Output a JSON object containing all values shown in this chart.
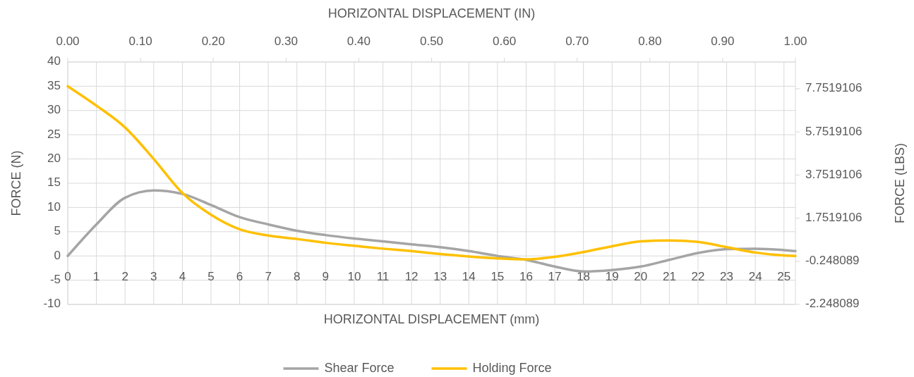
{
  "chart_data": {
    "type": "line",
    "xlabel": "HORIZONTAL DISPLACEMENT (mm)",
    "x2label": "HORIZONTAL DISPLACEMENT (IN)",
    "ylabel": "FORCE (N)",
    "y2label": "FORCE (LBS)",
    "x": [
      0,
      1,
      2,
      3,
      4,
      5,
      6,
      7,
      8,
      9,
      10,
      11,
      12,
      13,
      14,
      15,
      16,
      17,
      18,
      19,
      20,
      21,
      22,
      23,
      24,
      25,
      25.4
    ],
    "series": [
      {
        "name": "Shear Force",
        "color": "#a5a5a5",
        "values": [
          0,
          6.5,
          12,
          13.5,
          12.8,
          10.5,
          8,
          6.5,
          5.2,
          4.3,
          3.6,
          3,
          2.4,
          1.8,
          1,
          0,
          -0.8,
          -2.2,
          -3.2,
          -2.9,
          -2.2,
          -0.8,
          0.6,
          1.4,
          1.5,
          1.2,
          1
        ]
      },
      {
        "name": "Holding Force",
        "color": "#ffc000",
        "values": [
          35,
          31,
          26.5,
          20,
          13,
          8.5,
          5.5,
          4.2,
          3.5,
          2.7,
          2.1,
          1.5,
          1,
          0.4,
          -0.1,
          -0.5,
          -0.7,
          -0.2,
          0.8,
          2,
          3,
          3.2,
          2.9,
          1.8,
          0.7,
          0.1,
          0
        ]
      }
    ],
    "xlim": [
      0,
      25.4
    ],
    "xticks": [
      0,
      1,
      2,
      3,
      4,
      5,
      6,
      7,
      8,
      9,
      10,
      11,
      12,
      13,
      14,
      15,
      16,
      17,
      18,
      19,
      20,
      21,
      22,
      23,
      24,
      25
    ],
    "x2lim": [
      0,
      1
    ],
    "x2ticks": [
      {
        "value": 0,
        "label": "0.00"
      },
      {
        "value": 0.1,
        "label": "0.10"
      },
      {
        "value": 0.2,
        "label": "0.20"
      },
      {
        "value": 0.3,
        "label": "0.30"
      },
      {
        "value": 0.4,
        "label": "0.40"
      },
      {
        "value": 0.5,
        "label": "0.50"
      },
      {
        "value": 0.6,
        "label": "0.60"
      },
      {
        "value": 0.7,
        "label": "0.70"
      },
      {
        "value": 0.8,
        "label": "0.80"
      },
      {
        "value": 0.9,
        "label": "0.90"
      },
      {
        "value": 1,
        "label": "1.00"
      }
    ],
    "ylim": [
      -10,
      40
    ],
    "yticks": [
      -10,
      -5,
      0,
      5,
      10,
      15,
      20,
      25,
      30,
      35,
      40
    ],
    "y2lim": [
      -2.248089,
      8.99236
    ],
    "y2ticks": [
      -2.248089,
      -0.248089,
      1.7519106,
      3.7519106,
      5.7519106,
      7.7519106
    ],
    "grid": true,
    "legend": "bottom",
    "marker": "none",
    "line_style": "solid"
  }
}
